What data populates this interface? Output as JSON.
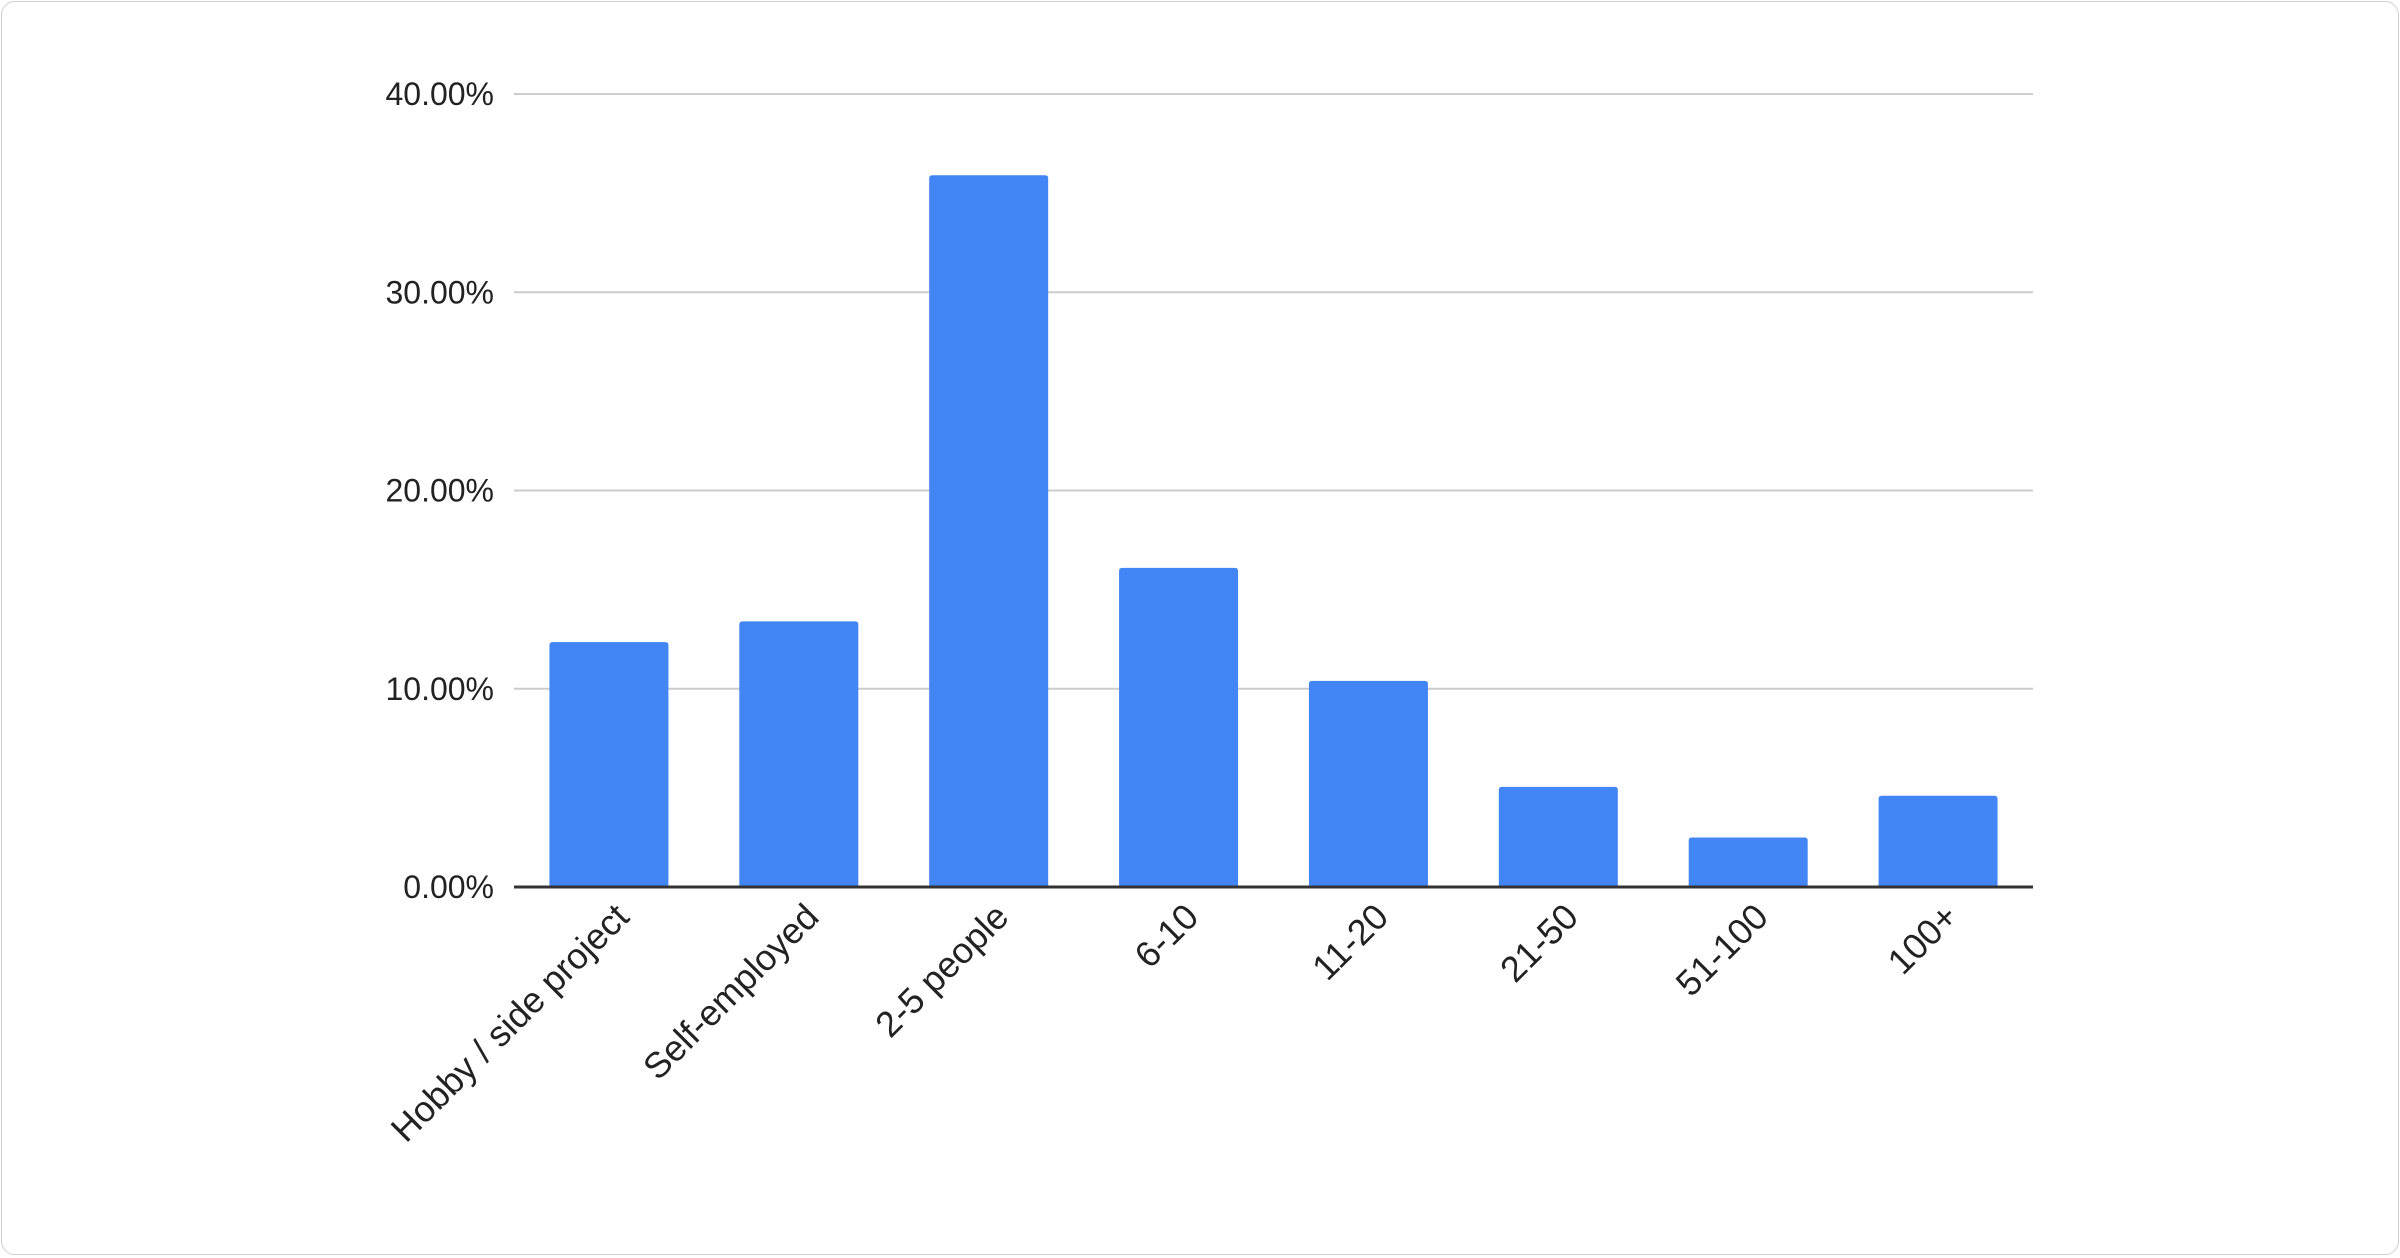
{
  "chart_data": {
    "type": "bar",
    "title": "",
    "xlabel": "",
    "ylabel": "",
    "categories": [
      "Hobby / side project",
      "Self-employed",
      "2-5 people",
      "6-10",
      "11-20",
      "21-50",
      "51-100",
      "100+"
    ],
    "values": [
      12.35,
      13.4,
      35.9,
      16.1,
      10.4,
      5.05,
      2.5,
      4.6
    ],
    "value_unit": "%",
    "ylim": [
      0,
      40
    ],
    "yticks": [
      0,
      10,
      20,
      30,
      40
    ],
    "ytick_labels": [
      "0.00%",
      "10.00%",
      "20.00%",
      "30.00%",
      "40.00%"
    ],
    "grid": true,
    "legend": "none",
    "bar_color": "#4285f4"
  }
}
